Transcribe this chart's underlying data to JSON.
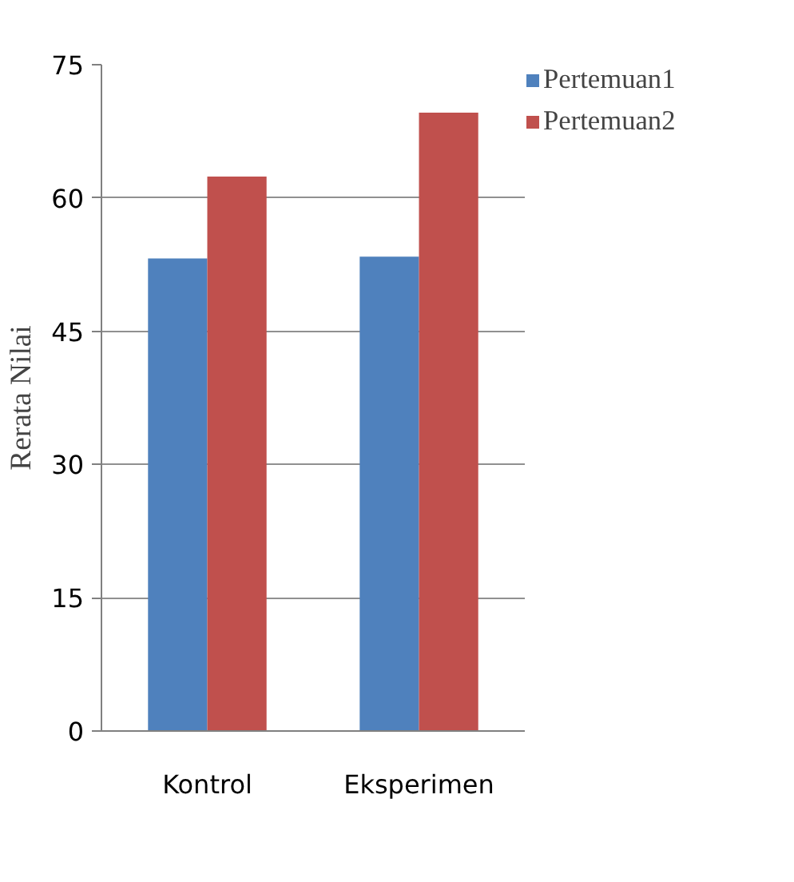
{
  "chart_data": {
    "type": "bar",
    "ylabel": "Rerata Nilai",
    "categories": [
      "Kontrol",
      "Eksperimen"
    ],
    "series": [
      {
        "name": "Pertemuan1",
        "color": "#4f81bd",
        "values": [
          53.2,
          53.4
        ]
      },
      {
        "name": "Pertemuan2",
        "color": "#c0504d",
        "values": [
          62.4,
          69.6
        ]
      }
    ],
    "ylim": [
      0,
      75
    ],
    "yticks": [
      0,
      15,
      30,
      45,
      60,
      75
    ],
    "grid": "y",
    "legend": "right"
  }
}
